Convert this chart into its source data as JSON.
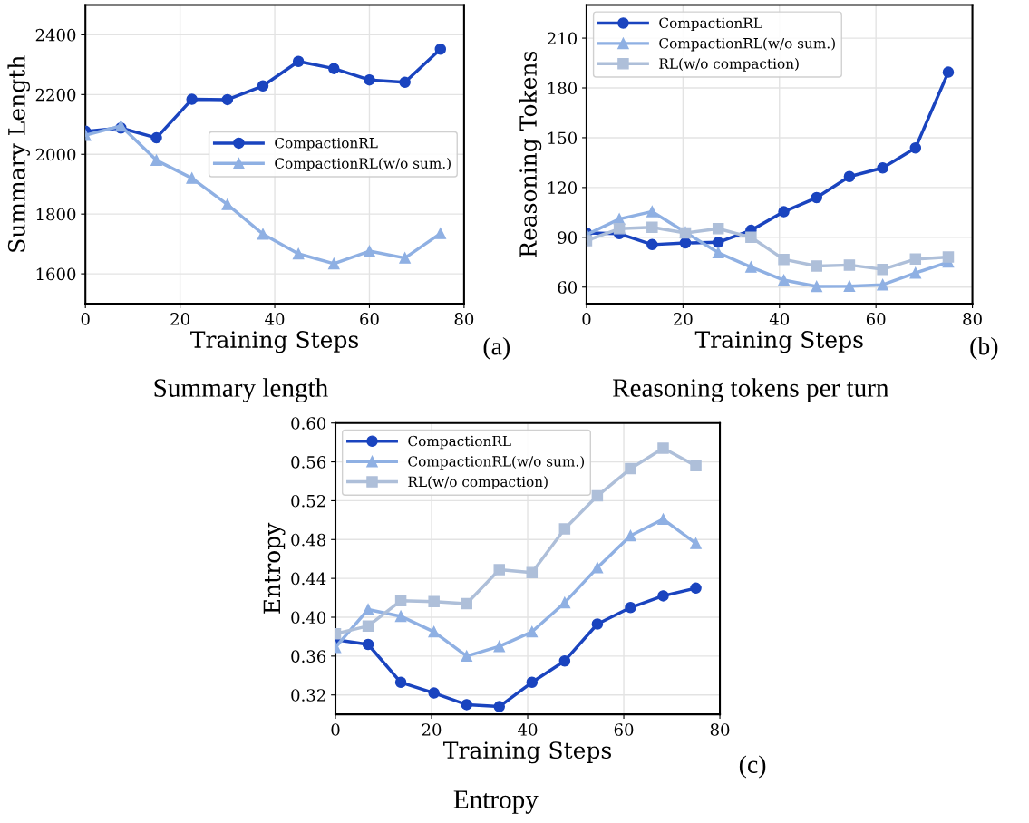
{
  "chart_data": [
    {
      "type": "line",
      "xlabel": "Training Steps",
      "ylabel": "Summary Length",
      "annotations": [
        "(a)",
        "Summary length"
      ],
      "x": [
        0,
        7.5,
        15,
        22.5,
        30,
        37.5,
        45,
        52.5,
        60,
        67.5,
        75
      ],
      "xlim": [
        0,
        80
      ],
      "xticks": [
        0,
        20,
        40,
        60,
        80
      ],
      "ylim": [
        1500,
        2500
      ],
      "yticks": [
        1600,
        1800,
        2000,
        2200,
        2400
      ],
      "grid": true,
      "legend": "right",
      "line_style": "solid",
      "series": [
        {
          "name": "CompactionRL",
          "color": "#1a44bf",
          "marker": "circle",
          "values": [
            2077,
            2088,
            2055,
            2184,
            2183,
            2229,
            2311,
            2287,
            2249,
            2241,
            2352
          ]
        },
        {
          "name": "CompactionRL(w/o sum.)",
          "color": "#8fb0e3",
          "marker": "triangle",
          "values": [
            2064,
            2095,
            1980,
            1920,
            1832,
            1733,
            1667,
            1634,
            1676,
            1653,
            1735
          ]
        }
      ]
    },
    {
      "type": "line",
      "xlabel": "Training Steps",
      "ylabel": "Reasoning Tokens",
      "annotations": [
        "(b)",
        "Reasoning tokens per turn"
      ],
      "x": [
        0,
        6.8,
        13.6,
        20.5,
        27.3,
        34.1,
        40.9,
        47.7,
        54.5,
        61.4,
        68.2,
        75
      ],
      "xlim": [
        0,
        80
      ],
      "xticks": [
        0,
        20,
        40,
        60,
        80
      ],
      "ylim": [
        50,
        230
      ],
      "yticks": [
        60,
        90,
        120,
        150,
        180,
        210
      ],
      "grid": true,
      "legend": "top left",
      "line_style": "solid",
      "series": [
        {
          "name": "CompactionRL",
          "color": "#1a44bf",
          "marker": "circle",
          "values": [
            92.6,
            92.2,
            85.6,
            86.6,
            87,
            94.2,
            105.4,
            113.9,
            126.6,
            131.8,
            143.8,
            189.5
          ]
        },
        {
          "name": "CompactionRL(w/o sum.)",
          "color": "#8fb0e3",
          "marker": "triangle",
          "values": [
            91.6,
            101,
            105.5,
            93,
            80.7,
            72.1,
            64.2,
            60.4,
            60.6,
            61.4,
            68.5,
            75.1
          ]
        },
        {
          "name": "RL(w/o compaction)",
          "color": "#aebfd9",
          "marker": "square",
          "values": [
            88,
            95.2,
            96,
            92.6,
            95.2,
            90,
            76.7,
            72.7,
            73.3,
            70.7,
            76.9,
            78.1
          ]
        }
      ]
    },
    {
      "type": "line",
      "xlabel": "Training Steps",
      "ylabel": "Entropy",
      "annotations": [
        "(c)",
        "Entropy"
      ],
      "x": [
        0,
        6.8,
        13.6,
        20.5,
        27.3,
        34.1,
        40.9,
        47.7,
        54.5,
        61.4,
        68.2,
        75
      ],
      "xlim": [
        0,
        80
      ],
      "xticks": [
        0,
        20,
        40,
        60,
        80
      ],
      "ylim": [
        0.3,
        0.6
      ],
      "yticks": [
        {
          "value": 0.32,
          "label": "0.32"
        },
        {
          "value": 0.36,
          "label": "0.36"
        },
        {
          "value": 0.4,
          "label": "0.40"
        },
        {
          "value": 0.44,
          "label": "0.44"
        },
        {
          "value": 0.48,
          "label": "0.48"
        },
        {
          "value": 0.52,
          "label": "0.52"
        },
        {
          "value": 0.56,
          "label": "0.56"
        },
        {
          "value": 0.6,
          "label": "0.60"
        }
      ],
      "grid": true,
      "legend": "top left",
      "line_style": "solid",
      "series": [
        {
          "name": "CompactionRL",
          "color": "#1a44bf",
          "marker": "circle",
          "values": [
            0.377,
            0.372,
            0.333,
            0.322,
            0.31,
            0.308,
            0.333,
            0.355,
            0.393,
            0.41,
            0.422,
            0.43
          ]
        },
        {
          "name": "CompactionRL(w/o sum.)",
          "color": "#8fb0e3",
          "marker": "triangle",
          "values": [
            0.369,
            0.408,
            0.401,
            0.385,
            0.36,
            0.37,
            0.385,
            0.415,
            0.451,
            0.484,
            0.501,
            0.476
          ]
        },
        {
          "name": "RL(w/o compaction)",
          "color": "#aebfd9",
          "marker": "square",
          "values": [
            0.383,
            0.391,
            0.417,
            0.416,
            0.414,
            0.449,
            0.446,
            0.491,
            0.525,
            0.553,
            0.574,
            0.556
          ]
        }
      ]
    }
  ]
}
